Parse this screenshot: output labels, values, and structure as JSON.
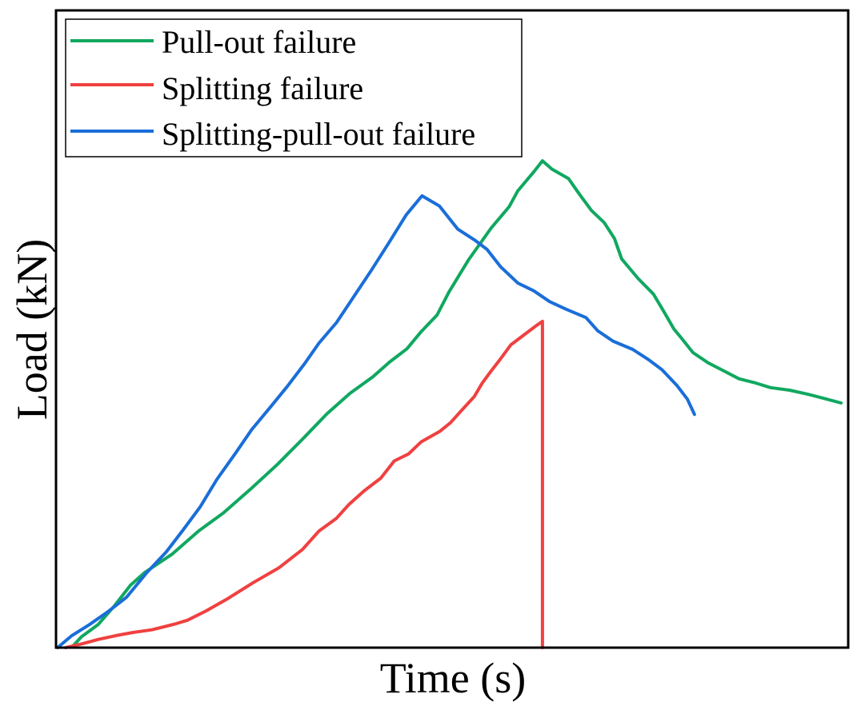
{
  "chart_data": {
    "type": "line",
    "title": "",
    "xlabel": "Time (s)",
    "ylabel": "Load (kN)",
    "xlim": [
      0,
      100
    ],
    "ylim": [
      0,
      100
    ],
    "xticks": [],
    "yticks": [],
    "grid": false,
    "legend_position": "top-left",
    "series": [
      {
        "name": "Pull-out failure",
        "color": "#10a860",
        "x": [
          2.1,
          3.2,
          5.3,
          7.4,
          9.4,
          11.2,
          14.7,
          18.0,
          21.1,
          24.5,
          27.9,
          31.1,
          34.2,
          37.1,
          40.0,
          42.1,
          44.3,
          46.1,
          48.1,
          49.6,
          52.1,
          54.9,
          57.2,
          58.3,
          60.4,
          61.4,
          62.6,
          64.7,
          66.1,
          67.6,
          69.2,
          70.5,
          71.4,
          73.5,
          75.4,
          76.8,
          78.0,
          79.0,
          80.4,
          82.3,
          84.5,
          86.2,
          88.1,
          90.2,
          92.6,
          94.8,
          97.0,
          99.1
        ],
        "y": [
          0.2,
          1.7,
          3.6,
          6.6,
          9.8,
          11.8,
          14.7,
          18.3,
          21.1,
          24.8,
          28.7,
          32.7,
          36.7,
          39.9,
          42.5,
          44.8,
          46.9,
          49.6,
          52.2,
          55.8,
          60.9,
          65.8,
          69.2,
          71.7,
          74.8,
          76.4,
          75.1,
          73.6,
          71.1,
          68.6,
          66.7,
          64.2,
          61.0,
          57.9,
          55.5,
          52.6,
          50.0,
          48.5,
          46.3,
          44.7,
          43.3,
          42.2,
          41.6,
          40.8,
          40.4,
          39.8,
          39.1,
          38.4
        ]
      },
      {
        "name": "Splitting failure",
        "color": "#f04040",
        "x": [
          1.2,
          3.3,
          5.4,
          7.6,
          9.8,
          12.1,
          15.0,
          16.6,
          19.0,
          21.7,
          24.9,
          28.1,
          31.1,
          33.2,
          35.4,
          37.0,
          38.9,
          41.0,
          42.7,
          44.5,
          46.1,
          48.4,
          49.8,
          51.1,
          52.8,
          53.8,
          54.8,
          56.1,
          57.4,
          59.3,
          60.6,
          61.4,
          61.4
        ],
        "y": [
          0.0,
          0.6,
          1.3,
          1.9,
          2.4,
          2.8,
          3.7,
          4.3,
          5.8,
          7.7,
          10.2,
          12.5,
          15.4,
          18.3,
          20.3,
          22.5,
          24.6,
          26.6,
          29.3,
          30.4,
          32.3,
          33.9,
          35.3,
          37.1,
          39.4,
          41.5,
          43.2,
          45.3,
          47.5,
          49.3,
          50.5,
          51.2,
          0.0
        ]
      },
      {
        "name": "Splitting-pull-out failure",
        "color": "#1a6ed8",
        "x": [
          0.2,
          2.0,
          4.2,
          6.5,
          8.9,
          11.4,
          13.9,
          16.0,
          18.2,
          20.3,
          22.6,
          24.7,
          27.1,
          29.2,
          31.4,
          33.2,
          35.4,
          37.6,
          39.8,
          42.0,
          44.2,
          46.2,
          48.4,
          50.7,
          52.8,
          54.4,
          56.1,
          58.3,
          60.3,
          62.3,
          64.4,
          66.9,
          68.4,
          70.3,
          72.8,
          74.8,
          76.5,
          78.4,
          79.7,
          80.6
        ],
        "y": [
          0.0,
          1.9,
          3.6,
          5.6,
          7.9,
          11.7,
          15.0,
          18.4,
          22.1,
          26.4,
          30.4,
          34.2,
          37.8,
          41.0,
          44.6,
          47.8,
          51.0,
          55.1,
          59.2,
          63.5,
          67.9,
          70.9,
          69.3,
          65.7,
          64.0,
          62.5,
          59.8,
          57.2,
          56.0,
          54.3,
          53.1,
          51.8,
          49.7,
          48.1,
          46.8,
          45.2,
          43.6,
          41.1,
          39.0,
          36.6
        ]
      }
    ]
  }
}
